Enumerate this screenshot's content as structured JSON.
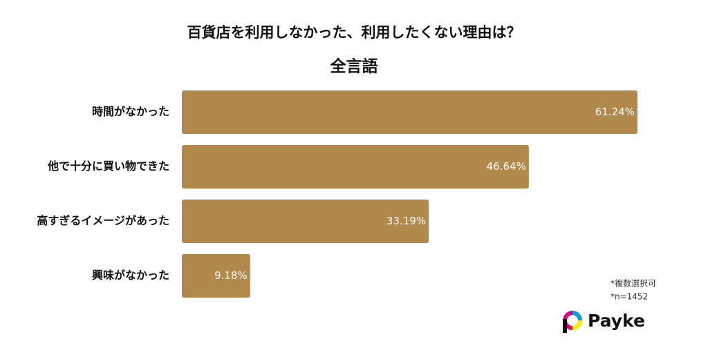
{
  "chart_data": {
    "type": "bar",
    "orientation": "horizontal",
    "title": "百貨店を利用しなかった、利用したくない理由は？",
    "subtitle": "全言語",
    "categories": [
      "時間がなかった",
      "他で十分に買い物できた",
      "高すぎるイメージがあった",
      "興味がなかった"
    ],
    "values": [
      61.24,
      46.64,
      33.19,
      9.18
    ],
    "value_labels": [
      "61.24%",
      "46.64%",
      "33.19%",
      "9.18%"
    ],
    "color": "#b0894b",
    "notes": [
      "*複数選択可",
      "*n=1452"
    ]
  },
  "brand": "Payke"
}
